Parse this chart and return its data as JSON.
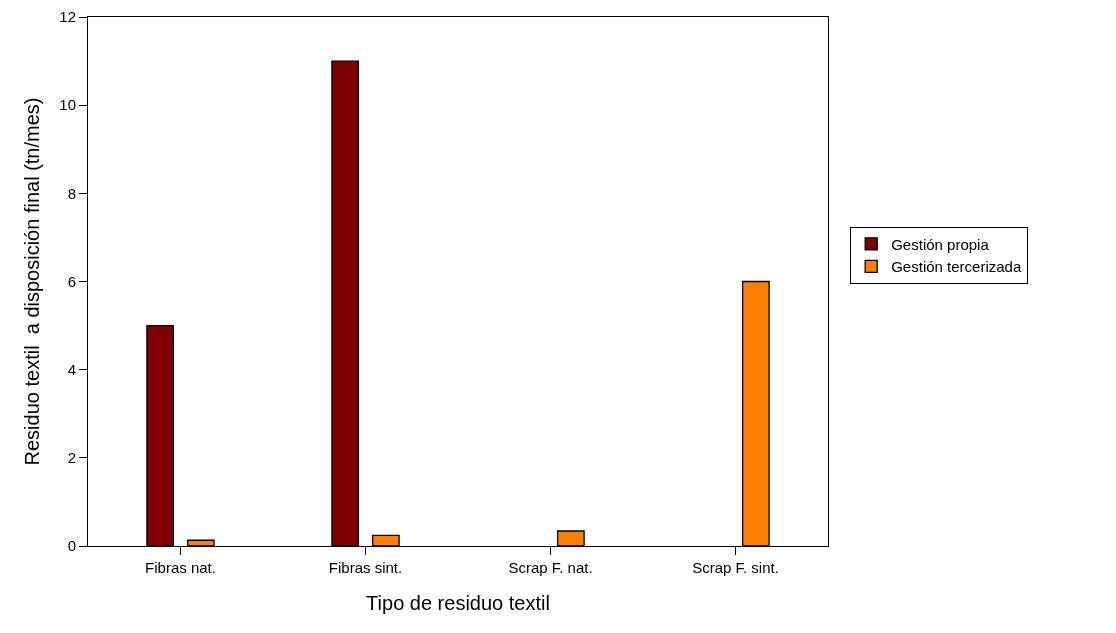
{
  "chart_data": {
    "type": "bar",
    "xlabel": "Tipo de residuo textil",
    "ylabel": "Residuo textil  a disposición final (tn/mes)",
    "categories": [
      "Fibras nat.",
      "Fibras sint.",
      "Scrap F. nat.",
      "Scrap F. sint."
    ],
    "series": [
      {
        "name": "Gestión propia",
        "color": "#800000",
        "values": [
          5,
          11,
          null,
          null
        ]
      },
      {
        "name": "Gestión tercerizada",
        "color": "#ff8000",
        "values": [
          0.13,
          0.24,
          0.34,
          6
        ]
      }
    ],
    "ylim": [
      0,
      12
    ],
    "yticks": [
      0,
      2,
      4,
      6,
      8,
      10,
      12
    ],
    "grid": false,
    "legend": "right"
  }
}
